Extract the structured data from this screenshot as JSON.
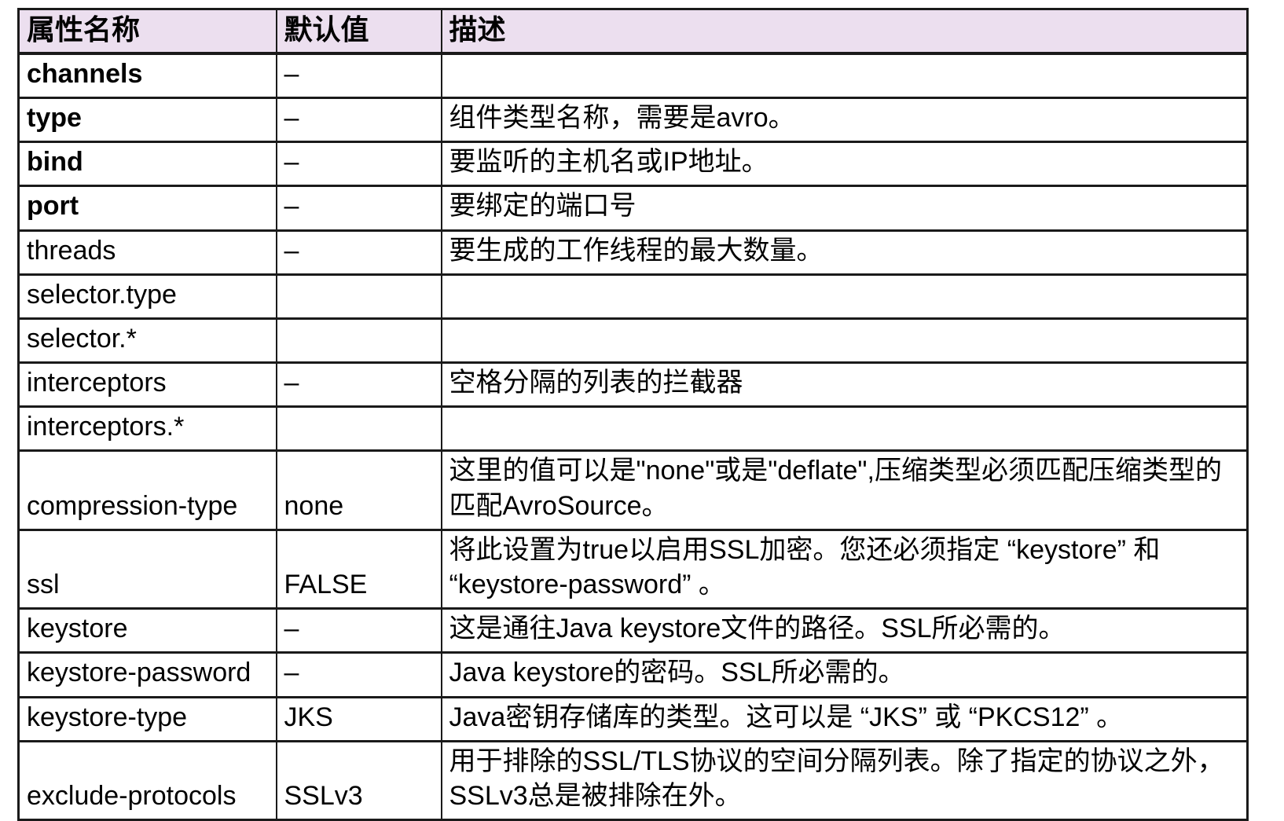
{
  "colors": {
    "header_bg": "#ECDFEF",
    "border": "#1A1A1A",
    "text": "#000000",
    "page_bg": "#FFFFFF"
  },
  "table": {
    "headers": [
      "属性名称",
      "默认值",
      "描述"
    ],
    "rows": [
      {
        "name": "channels",
        "bold": true,
        "default": "–",
        "desc": ""
      },
      {
        "name": "type",
        "bold": true,
        "default": "–",
        "desc": "组件类型名称，需要是avro。"
      },
      {
        "name": "bind",
        "bold": true,
        "default": "–",
        "desc": "要监听的主机名或IP地址。"
      },
      {
        "name": "port",
        "bold": true,
        "default": "–",
        "desc": "要绑定的端口号"
      },
      {
        "name": "threads",
        "bold": false,
        "default": "–",
        "desc": "要生成的工作线程的最大数量。"
      },
      {
        "name": "selector.type",
        "bold": false,
        "default": "",
        "desc": ""
      },
      {
        "name": "selector.*",
        "bold": false,
        "default": "",
        "desc": ""
      },
      {
        "name": "interceptors",
        "bold": false,
        "default": "–",
        "desc": "空格分隔的列表的拦截器"
      },
      {
        "name": "interceptors.*",
        "bold": false,
        "default": "",
        "desc": ""
      },
      {
        "name": "compression-type",
        "bold": false,
        "default": "none",
        "desc": "这里的值可以是\"none\"或是\"deflate\",压缩类型必须匹配压缩类型的匹配AvroSource。"
      },
      {
        "name": "ssl",
        "bold": false,
        "default": "FALSE",
        "desc": "将此设置为true以启用SSL加密。您还必须指定 “keystore” 和 “keystore-password” 。"
      },
      {
        "name": "keystore",
        "bold": false,
        "default": "–",
        "desc": "这是通往Java keystore文件的路径。SSL所必需的。"
      },
      {
        "name": "keystore-password",
        "bold": false,
        "default": "–",
        "desc": "Java keystore的密码。SSL所必需的。"
      },
      {
        "name": "keystore-type",
        "bold": false,
        "default": "JKS",
        "desc": "Java密钥存储库的类型。这可以是 “JKS” 或 “PKCS12” 。"
      },
      {
        "name": "exclude-protocols",
        "bold": false,
        "default": "SSLv3",
        "desc": "用于排除的SSL/TLS协议的空间分隔列表。除了指定的协议之外，SSLv3总是被排除在外。"
      }
    ]
  }
}
